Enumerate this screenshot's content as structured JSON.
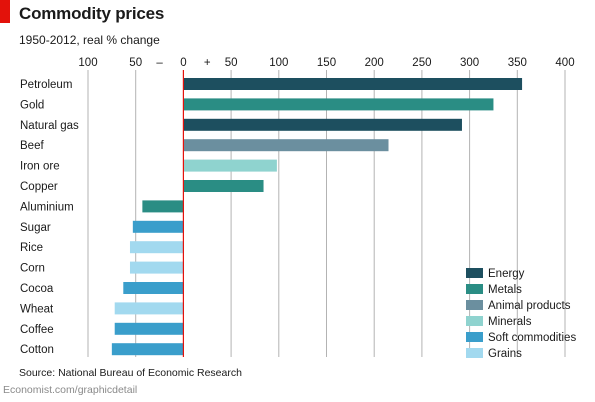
{
  "header": {
    "title": "Commodity prices",
    "subtitle": "1950-2012, real % change"
  },
  "footer": {
    "source": "Source: National Bureau of Economic Research",
    "credit": "Economist.com/graphicdetail"
  },
  "colors": {
    "Energy": "#1d4f5f",
    "Metals": "#2a8d84",
    "Animal products": "#6b8f9f",
    "Minerals": "#8fd3cf",
    "Soft commodities": "#3a9ecb",
    "Grains": "#a2d9ef",
    "zero_line": "#e3120b",
    "grid": "#b3b3b3",
    "accent_tab": "#e3120b"
  },
  "chart_data": {
    "type": "bar",
    "orientation": "horizontal",
    "xlim": [
      -100,
      400
    ],
    "ticks": [
      {
        "value": -100,
        "label": "100"
      },
      {
        "value": -50,
        "label": "50"
      },
      {
        "value": -25,
        "label": "–"
      },
      {
        "value": 0,
        "label": "0"
      },
      {
        "value": 25,
        "label": "+"
      },
      {
        "value": 50,
        "label": "50"
      },
      {
        "value": 100,
        "label": "100"
      },
      {
        "value": 150,
        "label": "150"
      },
      {
        "value": 200,
        "label": "200"
      },
      {
        "value": 250,
        "label": "250"
      },
      {
        "value": 300,
        "label": "300"
      },
      {
        "value": 350,
        "label": "350"
      },
      {
        "value": 400,
        "label": "400"
      }
    ],
    "gridlines": [
      -100,
      -50,
      50,
      100,
      150,
      200,
      250,
      300,
      350,
      400
    ],
    "categories": [
      "Petroleum",
      "Gold",
      "Natural gas",
      "Beef",
      "Iron ore",
      "Copper",
      "Aluminium",
      "Sugar",
      "Rice",
      "Corn",
      "Cocoa",
      "Wheat",
      "Coffee",
      "Cotton"
    ],
    "values": [
      355,
      325,
      292,
      215,
      98,
      84,
      -43,
      -53,
      -56,
      -56,
      -63,
      -72,
      -72,
      -75
    ],
    "groups": [
      "Energy",
      "Metals",
      "Energy",
      "Animal products",
      "Minerals",
      "Metals",
      "Metals",
      "Soft commodities",
      "Grains",
      "Grains",
      "Soft commodities",
      "Grains",
      "Soft commodities",
      "Soft commodities"
    ],
    "legend": {
      "position": "bottom-right",
      "entries": [
        "Energy",
        "Metals",
        "Animal products",
        "Minerals",
        "Soft commodities",
        "Grains"
      ]
    }
  }
}
